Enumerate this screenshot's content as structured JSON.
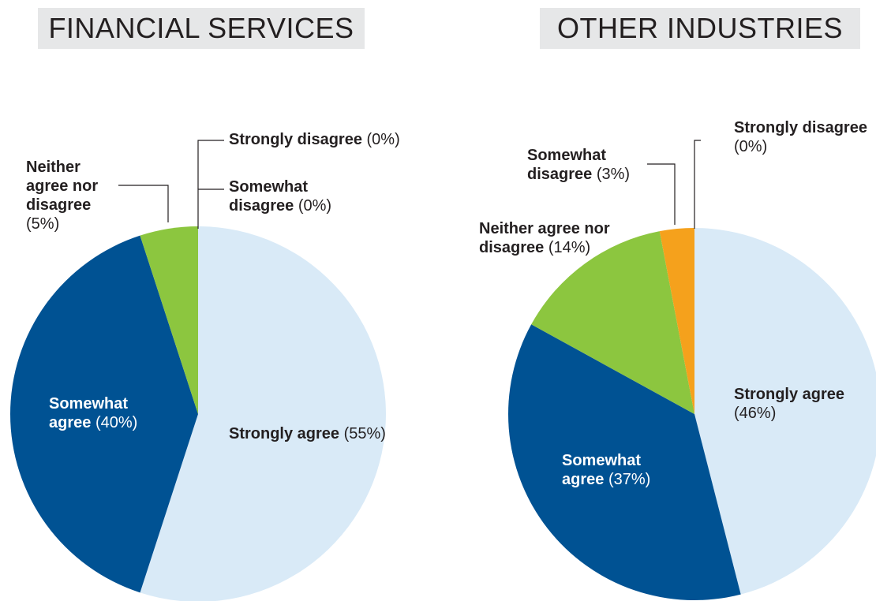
{
  "chart_data": [
    {
      "type": "pie",
      "title": "FINANCIAL SERVICES",
      "categories": [
        "Strongly agree",
        "Somewhat agree",
        "Neither agree nor disagree",
        "Somewhat disagree",
        "Strongly disagree"
      ],
      "values": [
        55,
        40,
        5,
        0,
        0
      ],
      "value_labels": [
        "(55%)",
        "(40%)",
        "(5%)",
        "(0%)",
        "(0%)"
      ],
      "colors": [
        "#d9eaf7",
        "#005293",
        "#8cc63f",
        "#f5a11c",
        "#7f7f7f"
      ]
    },
    {
      "type": "pie",
      "title": "OTHER INDUSTRIES",
      "categories": [
        "Strongly agree",
        "Somewhat agree",
        "Neither agree nor disagree",
        "Somewhat disagree",
        "Strongly disagree"
      ],
      "values": [
        46,
        37,
        14,
        3,
        0
      ],
      "value_labels": [
        "(46%)",
        "(37%)",
        "(14%)",
        "(3%)",
        "(0%)"
      ],
      "colors": [
        "#d9eaf7",
        "#005293",
        "#8cc63f",
        "#f5a11c",
        "#7f7f7f"
      ]
    }
  ]
}
